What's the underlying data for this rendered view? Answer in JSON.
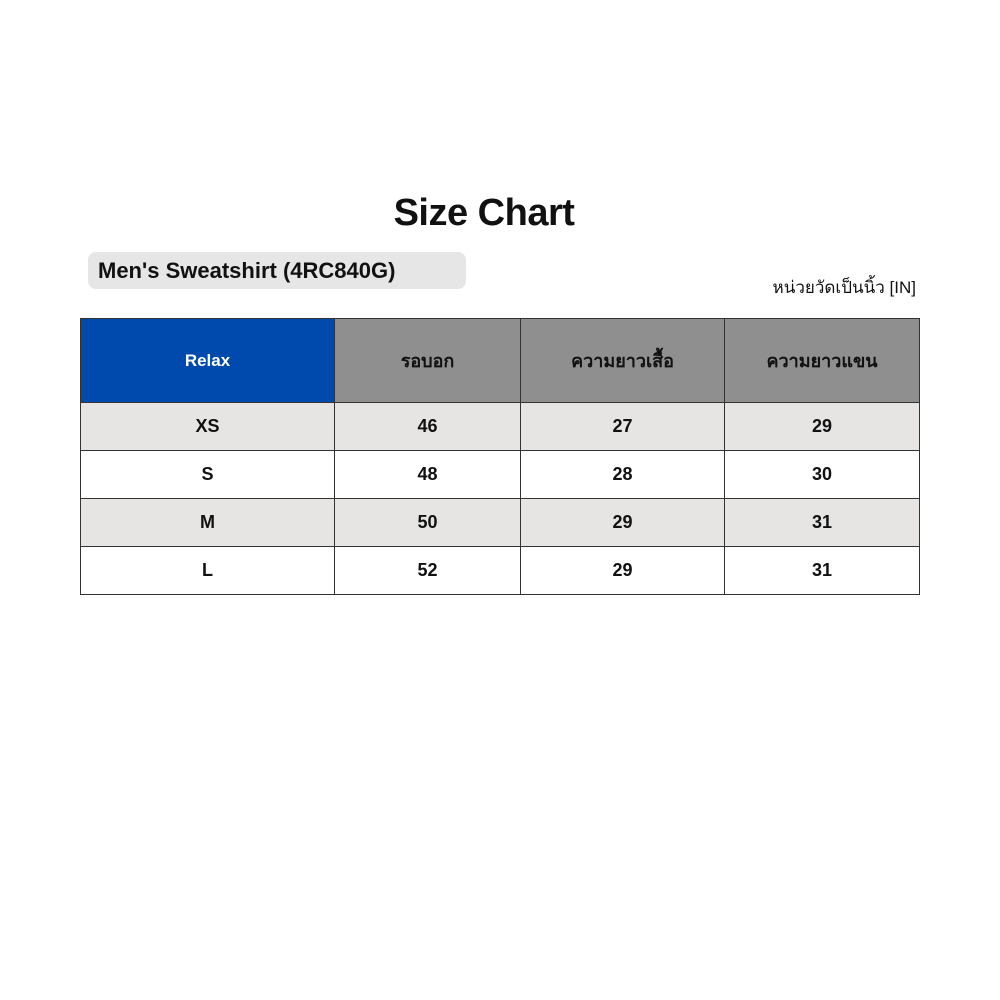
{
  "title": "Size Chart",
  "product": "Men's Sweatshirt  (4RC840G)",
  "units": "หน่วยวัดเป็นนิ้ว [IN]",
  "colors": {
    "header_fit": "#004aad",
    "header": "#8f8f8f",
    "row_alt": "#e6e5e4"
  },
  "table": {
    "headers": [
      "Relax",
      "รอบอก",
      "ความยาวเสื้อ",
      "ความยาวแขน"
    ],
    "rows": [
      [
        "XS",
        "46",
        "27",
        "29"
      ],
      [
        "S",
        "48",
        "28",
        "30"
      ],
      [
        "M",
        "50",
        "29",
        "31"
      ],
      [
        "L",
        "52",
        "29",
        "31"
      ]
    ]
  }
}
